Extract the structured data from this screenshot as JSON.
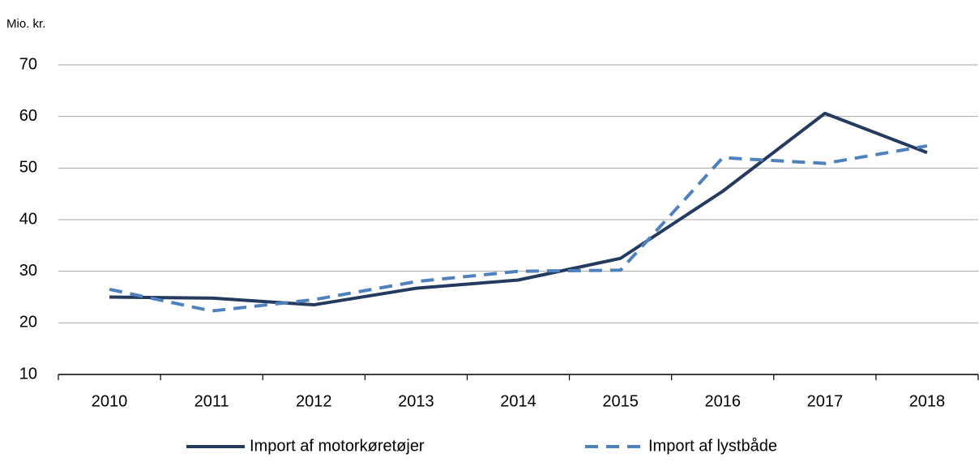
{
  "chart_data": {
    "type": "line",
    "y_axis_label": "Mio. kr.",
    "categories": [
      "2010",
      "2011",
      "2012",
      "2013",
      "2014",
      "2015",
      "2016",
      "2017",
      "2018"
    ],
    "series": [
      {
        "name": "Import af motorkøretøjer",
        "color": "#243a5e",
        "dash": false,
        "values": [
          25.0,
          24.8,
          23.5,
          26.7,
          28.3,
          32.5,
          45.5,
          60.6,
          53.0
        ]
      },
      {
        "name": "Import af lystbåde",
        "color": "#4f81bd",
        "dash": true,
        "values": [
          26.5,
          22.3,
          24.5,
          28.0,
          30.0,
          30.2,
          52.0,
          50.9,
          54.3
        ]
      }
    ],
    "ylim": [
      10,
      70
    ],
    "yticks": [
      10,
      20,
      30,
      40,
      50,
      60,
      70
    ],
    "grid": true
  }
}
